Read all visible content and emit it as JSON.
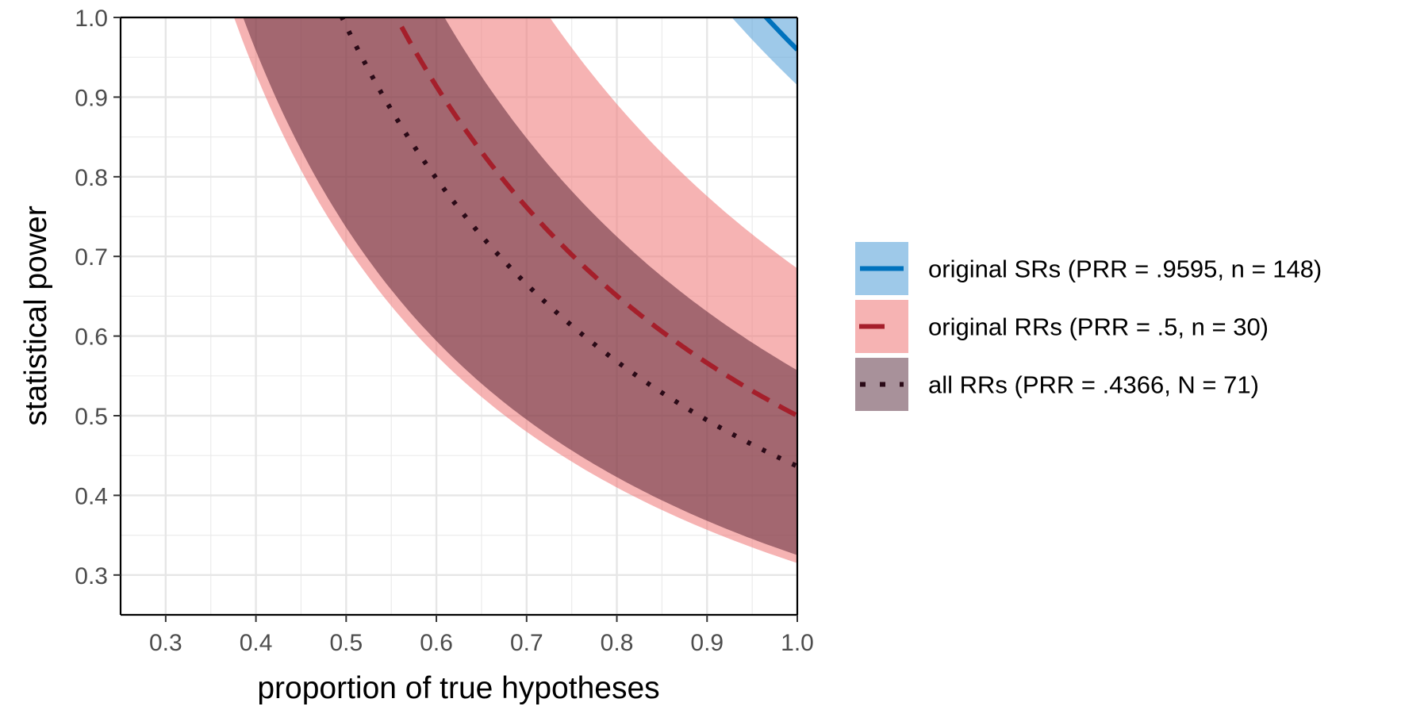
{
  "chart_data": {
    "type": "line",
    "title": "",
    "xlabel": "proportion of true hypotheses",
    "ylabel": "statistical power",
    "xlim": [
      0.25,
      1.0
    ],
    "ylim": [
      0.25,
      1.0
    ],
    "x_ticks": [
      "0.3",
      "0.4",
      "0.5",
      "0.6",
      "0.7",
      "0.8",
      "0.9",
      "1.0"
    ],
    "y_ticks": [
      "0.3",
      "0.4",
      "0.5",
      "0.6",
      "0.7",
      "0.8",
      "0.9",
      "1.0"
    ],
    "grid": true,
    "legend_position": "right",
    "series": [
      {
        "name": "original SRs (PRR = .9595, n = 148)",
        "line_style": "solid",
        "line_color": "#0072bd",
        "band_color": "#5da5da",
        "band_alpha": 0.6,
        "prr": 0.9595,
        "prr_lower": 0.915,
        "prr_upper": 0.998
      },
      {
        "name": "original RRs (PRR = .5, n = 30)",
        "line_style": "dashed",
        "line_color": "#a51f2b",
        "band_color": "#f08080",
        "band_alpha": 0.6,
        "prr": 0.5,
        "prr_lower": 0.315,
        "prr_upper": 0.685
      },
      {
        "name": "all RRs (PRR = .4366, N = 71)",
        "line_style": "dotted",
        "line_color": "#2a0a17",
        "band_color": "#3d0a1f",
        "band_alpha": 0.45,
        "prr": 0.4366,
        "prr_lower": 0.325,
        "prr_upper": 0.557
      }
    ]
  }
}
